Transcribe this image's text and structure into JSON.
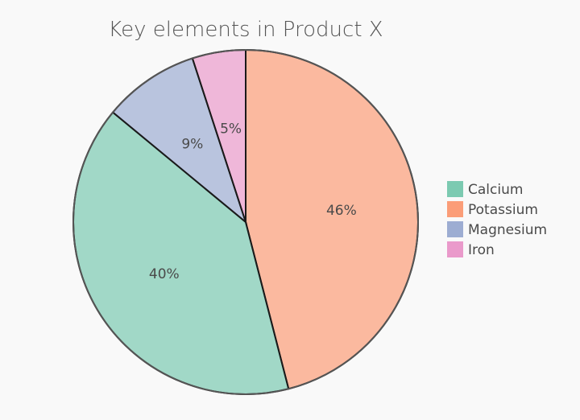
{
  "chart_data": {
    "type": "pie",
    "title": "Key elements in Product X",
    "categories": [
      "Calcium",
      "Potassium",
      "Magnesium",
      "Iron"
    ],
    "values": [
      40,
      46,
      9,
      5
    ],
    "labels": [
      "40%",
      "46%",
      "9%",
      "5%"
    ],
    "colors": [
      "#66c2a5",
      "#fc8d62",
      "#8da0cb",
      "#e78ac3"
    ],
    "legend_position": "right"
  }
}
